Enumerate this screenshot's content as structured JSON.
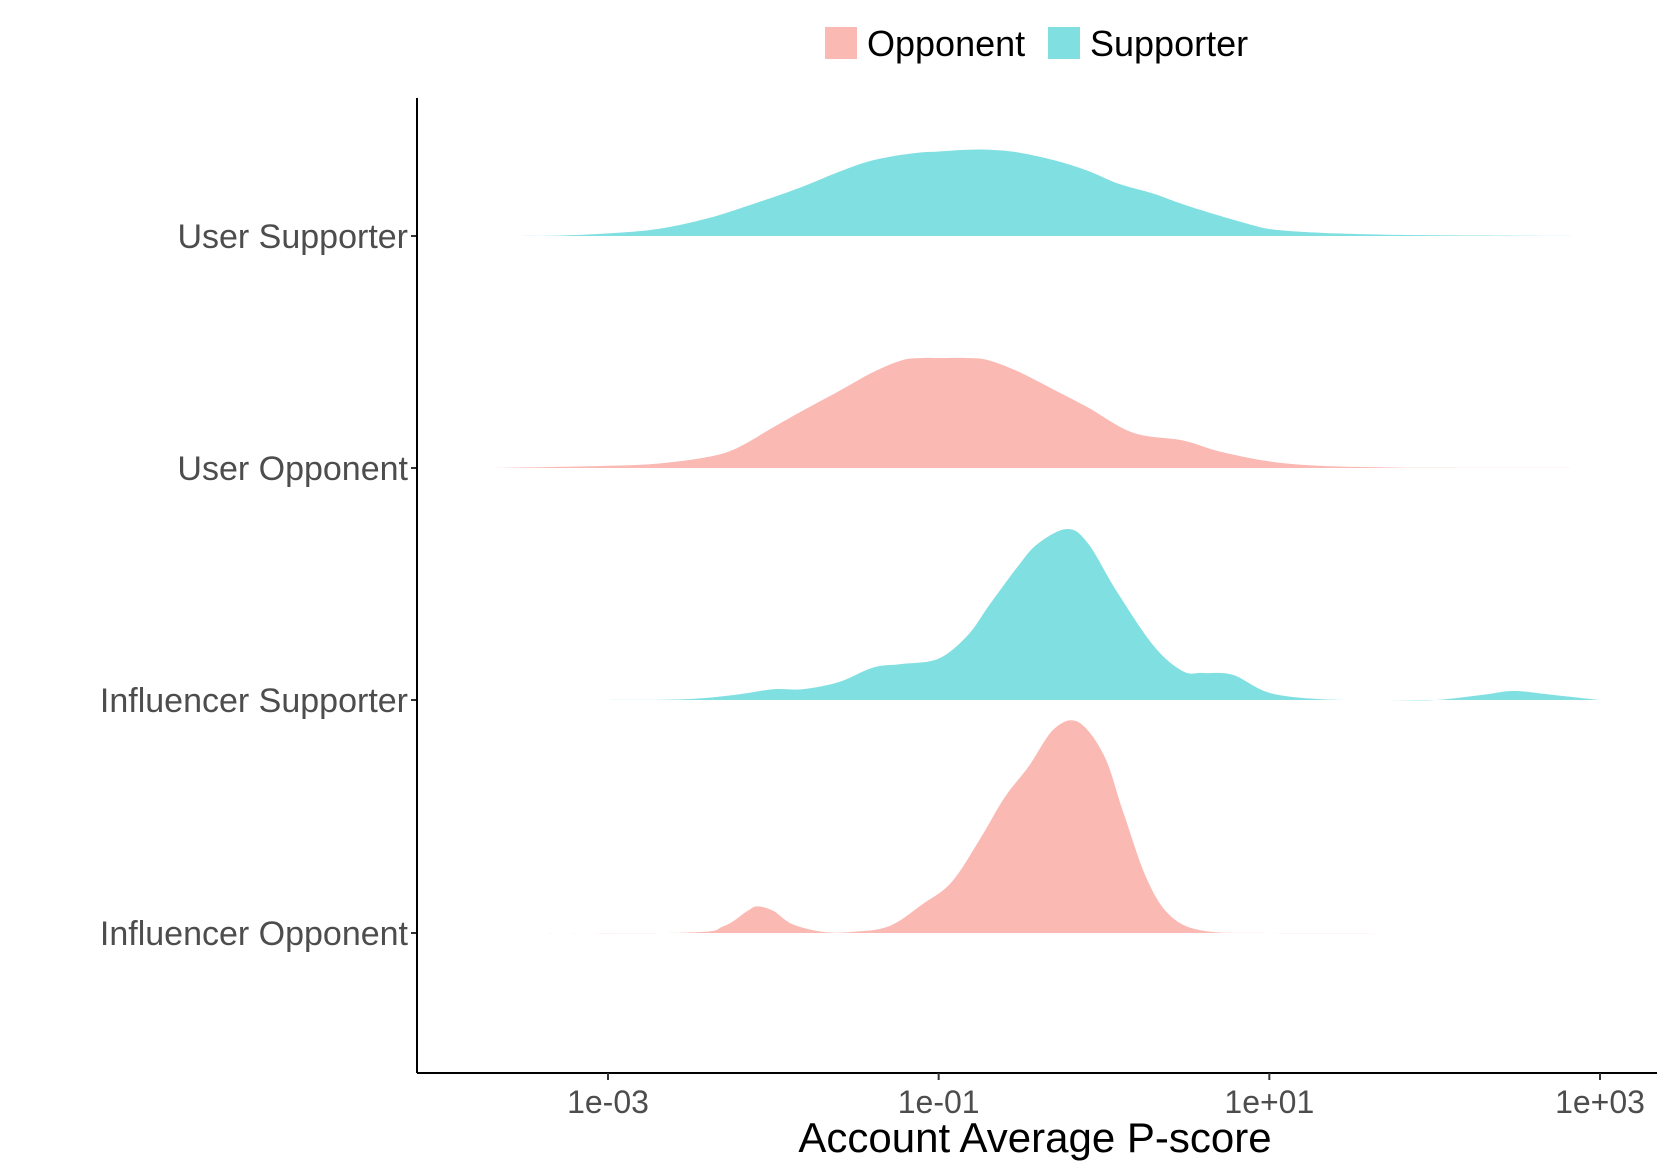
{
  "chart_data": {
    "type": "area",
    "subtype": "ridgeline-density",
    "xlabel": "Account Average P-score",
    "x_scale": "log10",
    "xlim": [
      0.0001,
      1000
    ],
    "x_ticks": [
      {
        "value": 0.001,
        "label": "1e-03"
      },
      {
        "value": 0.1,
        "label": "1e-01"
      },
      {
        "value": 10,
        "label": "1e+01"
      },
      {
        "value": 1000,
        "label": "1e+03"
      }
    ],
    "legend": {
      "position": "top",
      "entries": [
        {
          "name": "Opponent",
          "color": "#F8766D"
        },
        {
          "name": "Supporter",
          "color": "#00BFC4"
        }
      ]
    },
    "fill_colors": {
      "Opponent": "#fbb9b4",
      "Supporter": "#80dfe1"
    },
    "grid": false,
    "ridges": [
      {
        "label": "User Supporter",
        "group": "Supporter",
        "x": [
          0.0002,
          0.0005,
          0.001,
          0.002,
          0.004,
          0.008,
          0.015,
          0.025,
          0.04,
          0.07,
          0.1,
          0.15,
          0.2,
          0.3,
          0.5,
          0.8,
          1.2,
          2,
          3,
          5,
          8,
          10,
          15,
          25,
          50,
          100,
          300,
          1000
        ],
        "density": [
          0.0,
          0.005,
          0.03,
          0.08,
          0.2,
          0.38,
          0.56,
          0.73,
          0.86,
          0.94,
          0.96,
          0.98,
          0.98,
          0.95,
          0.86,
          0.74,
          0.6,
          0.48,
          0.36,
          0.23,
          0.12,
          0.08,
          0.05,
          0.03,
          0.015,
          0.008,
          0.003,
          0.0
        ]
      },
      {
        "label": "User Opponent",
        "group": "Opponent",
        "x": [
          0.0002,
          0.0005,
          0.001,
          0.002,
          0.004,
          0.006,
          0.01,
          0.015,
          0.025,
          0.04,
          0.06,
          0.08,
          0.1,
          0.15,
          0.2,
          0.3,
          0.5,
          0.8,
          1.5,
          3,
          5,
          10,
          20,
          50,
          100,
          300,
          1000
        ],
        "density": [
          0.0,
          0.01,
          0.02,
          0.04,
          0.1,
          0.18,
          0.37,
          0.52,
          0.7,
          0.87,
          0.98,
          1.0,
          1.0,
          1.0,
          0.98,
          0.88,
          0.71,
          0.55,
          0.32,
          0.25,
          0.15,
          0.06,
          0.02,
          0.005,
          0.002,
          0.001,
          0.0
        ]
      },
      {
        "label": "Influencer Supporter",
        "group": "Supporter",
        "x": [
          0.0002,
          0.001,
          0.003,
          0.006,
          0.01,
          0.015,
          0.025,
          0.04,
          0.06,
          0.1,
          0.15,
          0.2,
          0.3,
          0.4,
          0.6,
          0.8,
          1.2,
          2,
          3,
          4,
          6,
          10,
          20,
          50,
          100,
          200,
          300,
          500,
          1000
        ],
        "density": [
          0.0,
          0.0,
          0.005,
          0.03,
          0.06,
          0.06,
          0.1,
          0.18,
          0.2,
          0.23,
          0.36,
          0.52,
          0.74,
          0.87,
          0.95,
          0.87,
          0.6,
          0.3,
          0.16,
          0.15,
          0.14,
          0.04,
          0.005,
          0.0,
          0.0,
          0.03,
          0.05,
          0.03,
          0.0
        ]
      },
      {
        "label": "Influencer Opponent",
        "group": "Opponent",
        "x": [
          0.0002,
          0.003,
          0.005,
          0.007,
          0.008,
          0.01,
          0.013,
          0.02,
          0.03,
          0.05,
          0.08,
          0.12,
          0.18,
          0.25,
          0.35,
          0.5,
          0.7,
          1.0,
          1.3,
          1.8,
          2.5,
          4,
          10,
          100,
          1000
        ],
        "density": [
          0.0,
          0.002,
          0.03,
          0.1,
          0.12,
          0.1,
          0.04,
          0.005,
          0.005,
          0.03,
          0.13,
          0.23,
          0.43,
          0.61,
          0.75,
          0.92,
          0.95,
          0.8,
          0.55,
          0.25,
          0.08,
          0.01,
          0.0,
          0.0,
          0.0
        ]
      }
    ]
  }
}
